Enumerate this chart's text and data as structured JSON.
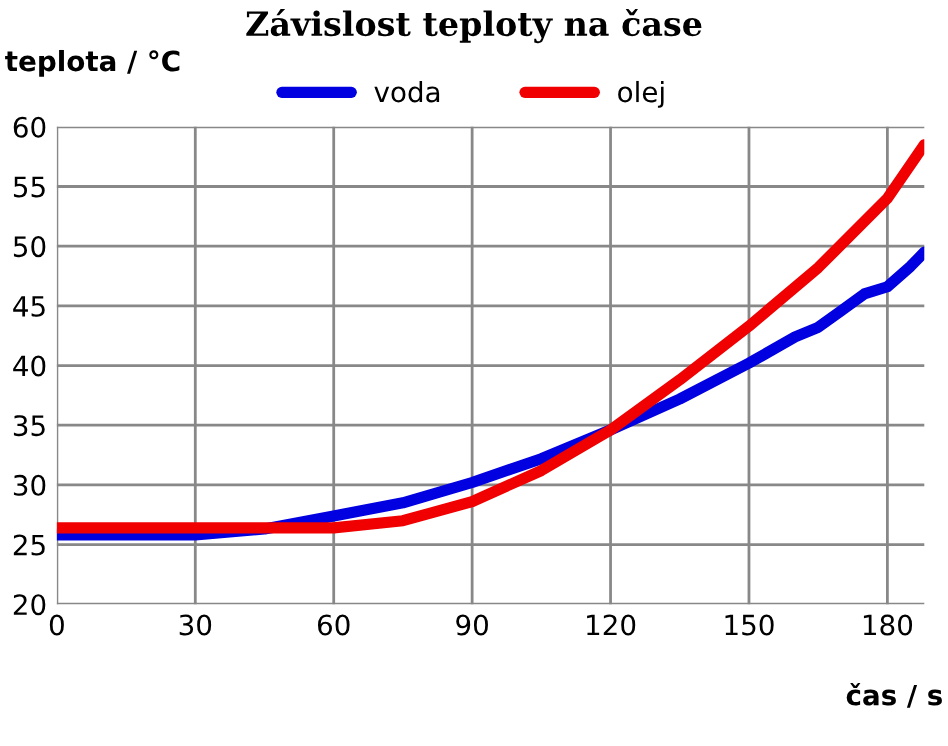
{
  "chart_data": {
    "type": "line",
    "title": "Závislost teploty na čase",
    "xlabel": "čas / s",
    "ylabel": "teplota / °C",
    "xlim": [
      0,
      188
    ],
    "xticks": [
      0,
      30,
      60,
      90,
      120,
      150,
      180
    ],
    "ylim": [
      20,
      60
    ],
    "yticks": [
      20,
      25,
      30,
      35,
      40,
      45,
      50,
      55,
      60
    ],
    "grid": true,
    "legend": "top",
    "marker": "none",
    "line_style": "solid",
    "series": [
      {
        "name": "voda",
        "color": "#0000e0",
        "x": [
          0,
          30,
          45,
          60,
          75,
          90,
          105,
          120,
          135,
          150,
          160,
          165,
          170,
          175,
          180,
          185,
          188
        ],
        "values": [
          25.8,
          25.8,
          26.3,
          27.4,
          28.5,
          30.2,
          32.2,
          34.6,
          37.2,
          40.2,
          42.4,
          43.2,
          44.6,
          46,
          46.6,
          48.3,
          49.5
        ]
      },
      {
        "name": "olej",
        "color": "#f00000",
        "x": [
          0,
          30,
          60,
          75,
          90,
          105,
          120,
          135,
          150,
          165,
          180,
          188
        ],
        "values": [
          26.4,
          26.4,
          26.4,
          27.0,
          28.6,
          31.2,
          34.6,
          38.8,
          43.3,
          48.2,
          54,
          58.5
        ]
      }
    ]
  }
}
